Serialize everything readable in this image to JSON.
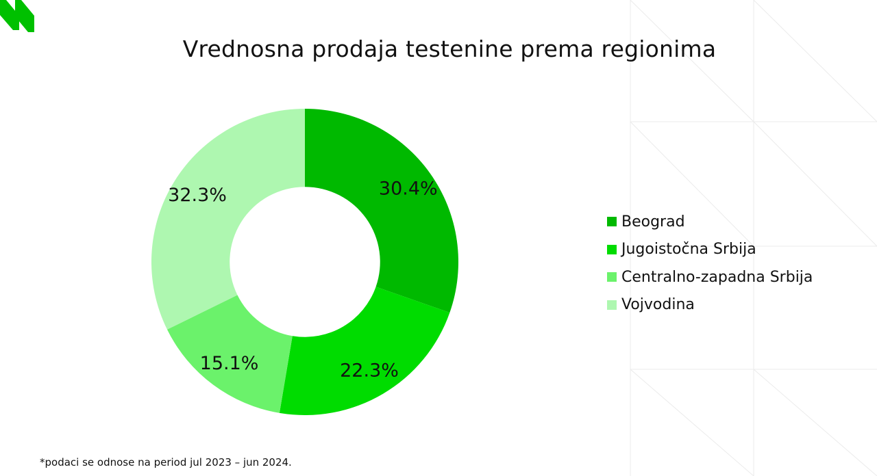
{
  "colors": {
    "background": "#ffffff",
    "logo": "#00c000",
    "grid_lines": "#ebebeb"
  },
  "chart_data": {
    "type": "pie",
    "style": "donut",
    "title": "Vrednosna prodaja testenine prema regionima",
    "unit": "%",
    "start_angle_deg": 0,
    "direction": "clockwise",
    "inner_radius_ratio": 0.49,
    "legend_position": "right",
    "slices": [
      {
        "label": "Beograd",
        "value": 30.4,
        "value_label": "30.4%",
        "color": "#00b900"
      },
      {
        "label": "Jugoistočna Srbija",
        "value": 22.3,
        "value_label": "22.3%",
        "color": "#00dc00"
      },
      {
        "label": "Centralno-zapadna Srbija",
        "value": 15.1,
        "value_label": "15.1%",
        "color": "#6bf26b"
      },
      {
        "label": "Vojvodina",
        "value": 32.3,
        "value_label": "32.3%",
        "color": "#aef7b0"
      }
    ]
  },
  "footnote": "*podaci  se odnose na period jul 2023 – jun 2024."
}
